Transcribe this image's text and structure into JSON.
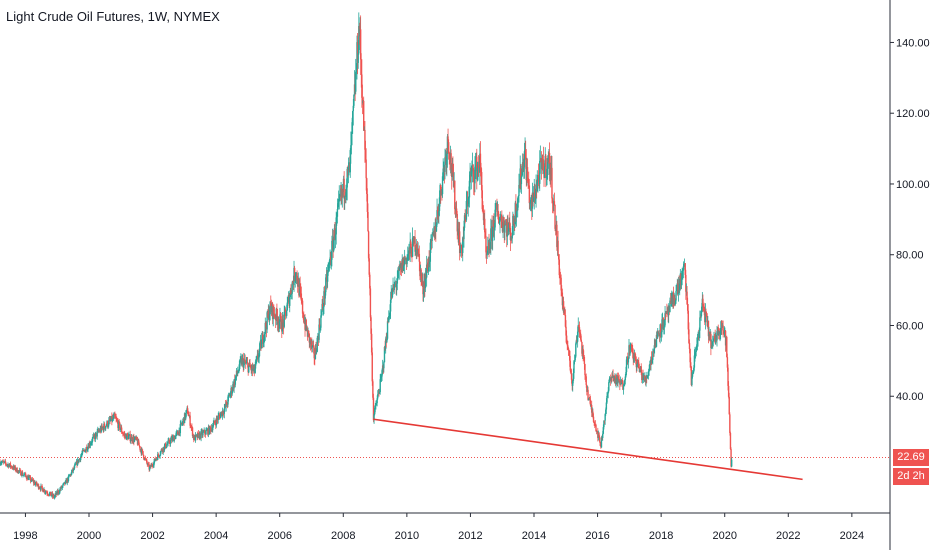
{
  "header": {
    "title": "Light Crude Oil Futures, 1W, NYMEX"
  },
  "last_price": {
    "value": "22.69",
    "countdown": "2d 2h"
  },
  "chart_data": {
    "type": "candlestick",
    "title": "Light Crude Oil Futures, 1W, NYMEX",
    "xlabel": "",
    "ylabel": "",
    "x_range": [
      1997.2,
      2025.2
    ],
    "ylim": [
      7,
      152
    ],
    "y_ticks": [
      40,
      60,
      80,
      100,
      120,
      140
    ],
    "y_tick_labels": [
      "40.00",
      "60.00",
      "80.00",
      "100.00",
      "120.00",
      "140.00"
    ],
    "x_ticks": [
      1998,
      2000,
      2002,
      2004,
      2006,
      2008,
      2010,
      2012,
      2014,
      2016,
      2018,
      2020,
      2022,
      2024
    ],
    "grid": false,
    "colors": {
      "up": "#26a69a",
      "down": "#ef5350",
      "trendline": "#e53935",
      "price_line": "#ef5350"
    },
    "price_path": [
      [
        1997.2,
        21.5
      ],
      [
        1997.5,
        20.5
      ],
      [
        1998.0,
        17.5
      ],
      [
        1998.5,
        14.0
      ],
      [
        1998.9,
        11.5
      ],
      [
        1999.3,
        16.0
      ],
      [
        1999.8,
        24.0
      ],
      [
        2000.3,
        30.0
      ],
      [
        2000.8,
        34.0
      ],
      [
        2001.1,
        29.0
      ],
      [
        2001.5,
        27.5
      ],
      [
        2001.9,
        19.5
      ],
      [
        2002.3,
        25.0
      ],
      [
        2002.8,
        29.5
      ],
      [
        2003.1,
        36.0
      ],
      [
        2003.3,
        28.0
      ],
      [
        2003.8,
        30.5
      ],
      [
        2004.3,
        37.0
      ],
      [
        2004.8,
        50.0
      ],
      [
        2005.2,
        47.0
      ],
      [
        2005.7,
        65.0
      ],
      [
        2006.1,
        60.0
      ],
      [
        2006.5,
        76.0
      ],
      [
        2006.8,
        60.0
      ],
      [
        2007.1,
        51.0
      ],
      [
        2007.5,
        74.0
      ],
      [
        2007.9,
        95.0
      ],
      [
        2008.2,
        104.0
      ],
      [
        2008.5,
        145.0
      ],
      [
        2008.75,
        95.0
      ],
      [
        2008.95,
        34.0
      ],
      [
        2009.2,
        45.0
      ],
      [
        2009.5,
        68.0
      ],
      [
        2009.9,
        78.0
      ],
      [
        2010.3,
        84.0
      ],
      [
        2010.5,
        70.0
      ],
      [
        2010.9,
        88.0
      ],
      [
        2011.3,
        113.0
      ],
      [
        2011.7,
        80.0
      ],
      [
        2012.0,
        102.0
      ],
      [
        2012.3,
        106.0
      ],
      [
        2012.5,
        78.0
      ],
      [
        2012.8,
        92.0
      ],
      [
        2013.3,
        86.0
      ],
      [
        2013.7,
        109.0
      ],
      [
        2013.9,
        93.0
      ],
      [
        2014.2,
        104.0
      ],
      [
        2014.5,
        106.0
      ],
      [
        2014.9,
        66.0
      ],
      [
        2015.2,
        44.0
      ],
      [
        2015.4,
        61.0
      ],
      [
        2015.7,
        40.0
      ],
      [
        2016.1,
        26.0
      ],
      [
        2016.4,
        46.0
      ],
      [
        2016.8,
        43.0
      ],
      [
        2017.0,
        54.0
      ],
      [
        2017.5,
        44.0
      ],
      [
        2017.9,
        58.0
      ],
      [
        2018.2,
        63.0
      ],
      [
        2018.5,
        70.0
      ],
      [
        2018.75,
        76.0
      ],
      [
        2018.95,
        44.0
      ],
      [
        2019.3,
        66.0
      ],
      [
        2019.6,
        54.0
      ],
      [
        2019.9,
        61.0
      ],
      [
        2020.05,
        55.0
      ],
      [
        2020.15,
        33.0
      ],
      [
        2020.2,
        20.0
      ],
      [
        2020.22,
        22.69
      ]
    ],
    "trendline": {
      "x": [
        2008.95,
        2022.45
      ],
      "y": [
        33.5,
        16.5
      ]
    },
    "price_line": 22.69
  }
}
